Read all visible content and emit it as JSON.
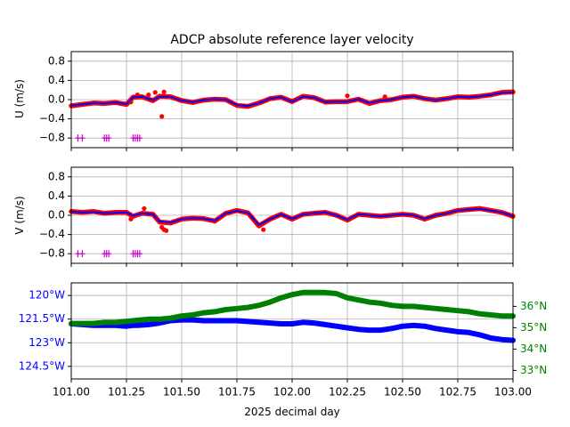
{
  "title": "ADCP absolute reference layer velocity",
  "chart_data": [
    {
      "type": "line",
      "id": "u_panel",
      "xlim": [
        101.0,
        103.0
      ],
      "ylim": [
        -1.0,
        1.0
      ],
      "ylabel": "U (m/s)",
      "yticks": [
        0.8,
        0.4,
        0.0,
        -0.4,
        -0.8
      ],
      "ytick_labels": [
        "0.8",
        "0.4",
        "0.0",
        "−0.4",
        "−0.8"
      ],
      "xticks": [
        101.0,
        101.25,
        101.5,
        101.75,
        102.0,
        102.25,
        102.5,
        102.75,
        103.0
      ],
      "grid": true,
      "series": [
        {
          "role": "raw",
          "color": "#ff0000",
          "x": [
            101.0,
            101.05,
            101.1,
            101.15,
            101.2,
            101.25,
            101.28,
            101.32,
            101.37,
            101.4,
            101.45,
            101.5,
            101.55,
            101.6,
            101.65,
            101.7,
            101.75,
            101.8,
            101.85,
            101.9,
            101.95,
            102.0,
            102.05,
            102.1,
            102.15,
            102.2,
            102.25,
            102.3,
            102.35,
            102.4,
            102.45,
            102.5,
            102.55,
            102.6,
            102.65,
            102.7,
            102.75,
            102.8,
            102.85,
            102.9,
            102.95,
            103.0
          ],
          "values": [
            -0.13,
            -0.1,
            -0.07,
            -0.08,
            -0.06,
            -0.1,
            0.05,
            0.06,
            -0.02,
            0.07,
            0.06,
            -0.02,
            -0.06,
            -0.01,
            0.01,
            0.0,
            -0.12,
            -0.14,
            -0.07,
            0.02,
            0.05,
            -0.04,
            0.07,
            0.04,
            -0.05,
            -0.04,
            -0.04,
            0.01,
            -0.08,
            -0.02,
            0.0,
            0.05,
            0.07,
            0.02,
            -0.01,
            0.02,
            0.06,
            0.05,
            0.07,
            0.1,
            0.15,
            0.16
          ]
        },
        {
          "role": "outliers",
          "color": "#ff0000",
          "x": [
            101.27,
            101.3,
            101.35,
            101.38,
            101.41,
            101.42,
            102.25,
            102.42
          ],
          "values": [
            -0.05,
            0.1,
            0.1,
            0.15,
            -0.35,
            0.16,
            0.08,
            0.06
          ]
        },
        {
          "role": "smoothed",
          "color": "#0000ff",
          "x": [
            101.0,
            101.05,
            101.1,
            101.15,
            101.2,
            101.25,
            101.28,
            101.32,
            101.37,
            101.4,
            101.45,
            101.5,
            101.55,
            101.6,
            101.65,
            101.7,
            101.75,
            101.8,
            101.85,
            101.9,
            101.95,
            102.0,
            102.05,
            102.1,
            102.15,
            102.2,
            102.25,
            102.3,
            102.35,
            102.4,
            102.45,
            102.5,
            102.55,
            102.6,
            102.65,
            102.7,
            102.75,
            102.8,
            102.85,
            102.9,
            102.95,
            103.0
          ],
          "values": [
            -0.12,
            -0.1,
            -0.07,
            -0.08,
            -0.06,
            -0.09,
            0.05,
            0.06,
            -0.01,
            0.06,
            0.06,
            -0.02,
            -0.05,
            -0.01,
            0.01,
            0.0,
            -0.11,
            -0.13,
            -0.07,
            0.02,
            0.05,
            -0.04,
            0.06,
            0.04,
            -0.05,
            -0.04,
            -0.04,
            0.01,
            -0.07,
            -0.02,
            0.0,
            0.05,
            0.07,
            0.02,
            -0.01,
            0.02,
            0.06,
            0.05,
            0.07,
            0.1,
            0.14,
            0.15
          ]
        },
        {
          "role": "flags",
          "color": "#cc00cc",
          "x": [
            101.03,
            101.05,
            101.15,
            101.16,
            101.17,
            101.28,
            101.29,
            101.3,
            101.31
          ],
          "values": [
            -0.8,
            -0.8,
            -0.8,
            -0.8,
            -0.8,
            -0.8,
            -0.8,
            -0.8,
            -0.8
          ]
        }
      ]
    },
    {
      "type": "line",
      "id": "v_panel",
      "xlim": [
        101.0,
        103.0
      ],
      "ylim": [
        -1.0,
        1.0
      ],
      "ylabel": "V (m/s)",
      "yticks": [
        0.8,
        0.4,
        0.0,
        -0.4,
        -0.8
      ],
      "ytick_labels": [
        "0.8",
        "0.4",
        "0.0",
        "−0.4",
        "−0.8"
      ],
      "xticks": [
        101.0,
        101.25,
        101.5,
        101.75,
        102.0,
        102.25,
        102.5,
        102.75,
        103.0
      ],
      "grid": true,
      "series": [
        {
          "role": "raw",
          "color": "#ff0000",
          "x": [
            101.0,
            101.05,
            101.1,
            101.15,
            101.2,
            101.25,
            101.28,
            101.32,
            101.37,
            101.4,
            101.45,
            101.5,
            101.55,
            101.6,
            101.65,
            101.7,
            101.75,
            101.8,
            101.85,
            101.9,
            101.95,
            102.0,
            102.05,
            102.1,
            102.15,
            102.2,
            102.25,
            102.3,
            102.35,
            102.4,
            102.45,
            102.5,
            102.55,
            102.6,
            102.65,
            102.7,
            102.75,
            102.8,
            102.85,
            102.9,
            102.95,
            103.0
          ],
          "values": [
            0.08,
            0.06,
            0.08,
            0.04,
            0.06,
            0.06,
            -0.02,
            0.04,
            0.02,
            -0.14,
            -0.16,
            -0.08,
            -0.06,
            -0.07,
            -0.12,
            0.04,
            0.1,
            0.05,
            -0.22,
            -0.08,
            0.02,
            -0.08,
            0.02,
            0.04,
            0.06,
            0.0,
            -0.1,
            0.02,
            0.0,
            -0.02,
            0.0,
            0.02,
            0.0,
            -0.08,
            0.0,
            0.04,
            0.1,
            0.12,
            0.14,
            0.1,
            0.06,
            -0.02
          ]
        },
        {
          "role": "outliers",
          "color": "#ff0000",
          "x": [
            101.27,
            101.33,
            101.41,
            101.42,
            101.43,
            101.87
          ],
          "values": [
            -0.08,
            0.14,
            -0.25,
            -0.3,
            -0.32,
            -0.3
          ]
        },
        {
          "role": "smoothed",
          "color": "#0000ff",
          "x": [
            101.0,
            101.05,
            101.1,
            101.15,
            101.2,
            101.25,
            101.28,
            101.32,
            101.37,
            101.4,
            101.45,
            101.5,
            101.55,
            101.6,
            101.65,
            101.7,
            101.75,
            101.8,
            101.85,
            101.9,
            101.95,
            102.0,
            102.05,
            102.1,
            102.15,
            102.2,
            102.25,
            102.3,
            102.35,
            102.4,
            102.45,
            102.5,
            102.55,
            102.6,
            102.65,
            102.7,
            102.75,
            102.8,
            102.85,
            102.9,
            102.95,
            103.0
          ],
          "values": [
            0.08,
            0.06,
            0.07,
            0.04,
            0.05,
            0.06,
            -0.01,
            0.04,
            0.02,
            -0.13,
            -0.15,
            -0.08,
            -0.06,
            -0.07,
            -0.11,
            0.04,
            0.09,
            0.05,
            -0.2,
            -0.08,
            0.02,
            -0.07,
            0.02,
            0.04,
            0.06,
            0.0,
            -0.09,
            0.02,
            0.0,
            -0.02,
            0.0,
            0.02,
            0.0,
            -0.07,
            0.0,
            0.04,
            0.1,
            0.12,
            0.13,
            0.1,
            0.06,
            -0.02
          ]
        },
        {
          "role": "flags",
          "color": "#cc00cc",
          "x": [
            101.03,
            101.05,
            101.15,
            101.16,
            101.17,
            101.28,
            101.29,
            101.3,
            101.31
          ],
          "values": [
            -0.8,
            -0.8,
            -0.8,
            -0.8,
            -0.8,
            -0.8,
            -0.8,
            -0.8,
            -0.8
          ]
        }
      ]
    },
    {
      "type": "line",
      "id": "position_panel",
      "xlim": [
        101.0,
        103.0
      ],
      "xlabel": "2025 decimal day",
      "xticks": [
        101.0,
        101.25,
        101.5,
        101.75,
        102.0,
        102.25,
        102.5,
        102.75,
        103.0
      ],
      "xtick_labels": [
        "101.00",
        "101.25",
        "101.50",
        "101.75",
        "102.00",
        "102.25",
        "102.50",
        "102.75",
        "103.00"
      ],
      "grid": true,
      "left_axis": {
        "quantity": "longitude",
        "ylim": [
          -125.3,
          -119.2
        ],
        "ticks": [
          -120.0,
          -121.5,
          -123.0,
          -124.5
        ],
        "tick_labels": [
          "120°W",
          "121.5°W",
          "123°W",
          "124.5°W"
        ],
        "color": "#0000ff"
      },
      "right_axis": {
        "quantity": "latitude",
        "ylim": [
          32.6,
          37.1
        ],
        "ticks": [
          36,
          35,
          34,
          33
        ],
        "tick_labels": [
          "36°N",
          "35°N",
          "34°N",
          "33°N"
        ],
        "color": "#008000"
      },
      "series": [
        {
          "axis": "left",
          "color": "#0000ff",
          "x": [
            101.0,
            101.05,
            101.1,
            101.15,
            101.2,
            101.25,
            101.28,
            101.3,
            101.35,
            101.4,
            101.45,
            101.5,
            101.55,
            101.6,
            101.65,
            101.7,
            101.75,
            101.8,
            101.85,
            101.9,
            101.95,
            102.0,
            102.05,
            102.1,
            102.15,
            102.2,
            102.25,
            102.3,
            102.35,
            102.4,
            102.45,
            102.5,
            102.55,
            102.6,
            102.65,
            102.7,
            102.75,
            102.8,
            102.85,
            102.9,
            102.95,
            103.0
          ],
          "values": [
            -121.8,
            -121.85,
            -121.9,
            -121.9,
            -121.9,
            -121.95,
            -121.9,
            -121.9,
            -121.85,
            -121.75,
            -121.6,
            -121.55,
            -121.55,
            -121.6,
            -121.6,
            -121.6,
            -121.6,
            -121.65,
            -121.7,
            -121.75,
            -121.8,
            -121.8,
            -121.7,
            -121.75,
            -121.85,
            -121.95,
            -122.05,
            -122.15,
            -122.2,
            -122.2,
            -122.1,
            -121.95,
            -121.9,
            -121.95,
            -122.1,
            -122.2,
            -122.3,
            -122.35,
            -122.5,
            -122.7,
            -122.8,
            -122.85
          ]
        },
        {
          "axis": "right",
          "color": "#008000",
          "x": [
            101.0,
            101.05,
            101.1,
            101.15,
            101.2,
            101.25,
            101.3,
            101.35,
            101.4,
            101.45,
            101.5,
            101.55,
            101.6,
            101.65,
            101.7,
            101.75,
            101.8,
            101.85,
            101.9,
            101.95,
            102.0,
            102.05,
            102.1,
            102.15,
            102.2,
            102.25,
            102.3,
            102.35,
            102.4,
            102.45,
            102.5,
            102.55,
            102.6,
            102.65,
            102.7,
            102.75,
            102.8,
            102.85,
            102.9,
            102.95,
            103.0
          ],
          "values": [
            35.2,
            35.2,
            35.2,
            35.25,
            35.25,
            35.3,
            35.35,
            35.4,
            35.4,
            35.45,
            35.55,
            35.6,
            35.7,
            35.75,
            35.85,
            35.9,
            35.95,
            36.05,
            36.2,
            36.4,
            36.55,
            36.65,
            36.65,
            36.65,
            36.6,
            36.4,
            36.3,
            36.2,
            36.15,
            36.05,
            36.0,
            36.0,
            35.95,
            35.9,
            35.85,
            35.8,
            35.75,
            35.65,
            35.6,
            35.55,
            35.55
          ]
        }
      ]
    }
  ]
}
